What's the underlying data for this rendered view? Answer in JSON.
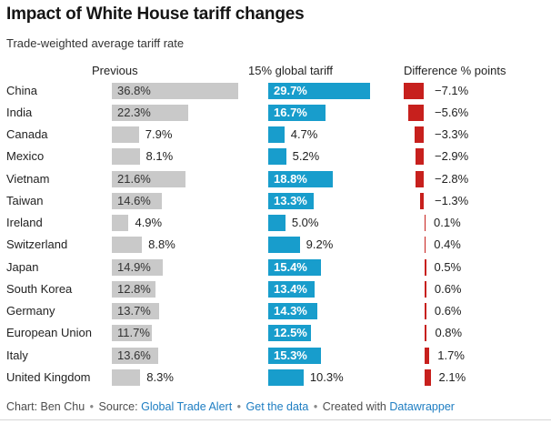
{
  "title": "Impact of White House tariff changes",
  "subtitle": "Trade-weighted average tariff rate",
  "columns": {
    "previous": "Previous",
    "new": "15% global tariff",
    "diff": "Difference % points"
  },
  "colors": {
    "previous_bar": "#c9c9c9",
    "new_bar": "#189dcc",
    "diff_bar": "#c7201d",
    "link": "#1d7dc2"
  },
  "footer": {
    "credit": "Chart: Ben Chu",
    "separator": "•",
    "source_label": "Source:",
    "source_link": "Global Trade Alert",
    "get_data_link": "Get the data",
    "created_with": "Created with",
    "datawrapper_link": "Datawrapper"
  },
  "chart_data": {
    "type": "bar",
    "title": "Impact of White House tariff changes",
    "subtitle": "Trade-weighted average tariff rate",
    "orientation": "horizontal",
    "grid": false,
    "value_labels": true,
    "categories": [
      "China",
      "India",
      "Canada",
      "Mexico",
      "Vietnam",
      "Taiwan",
      "Ireland",
      "Switzerland",
      "Japan",
      "South Korea",
      "Germany",
      "European Union",
      "Italy",
      "United Kingdom"
    ],
    "series": [
      {
        "name": "Previous",
        "color": "#c9c9c9",
        "values": [
          36.8,
          22.3,
          7.9,
          8.1,
          21.6,
          14.6,
          4.9,
          8.8,
          14.9,
          12.8,
          13.7,
          11.7,
          13.6,
          8.3
        ],
        "labels": [
          "36.8%",
          "22.3%",
          "7.9%",
          "8.1%",
          "21.6%",
          "14.6%",
          "4.9%",
          "8.8%",
          "14.9%",
          "12.8%",
          "13.7%",
          "11.7%",
          "13.6%",
          "8.3%"
        ]
      },
      {
        "name": "15% global tariff",
        "color": "#189dcc",
        "values": [
          29.7,
          16.7,
          4.7,
          5.2,
          18.8,
          13.3,
          5.0,
          9.2,
          15.4,
          13.4,
          14.3,
          12.5,
          15.3,
          10.3
        ],
        "labels": [
          "29.7%",
          "16.7%",
          "4.7%",
          "5.2%",
          "18.8%",
          "13.3%",
          "5.0%",
          "9.2%",
          "15.4%",
          "13.4%",
          "14.3%",
          "12.5%",
          "15.3%",
          "10.3%"
        ]
      },
      {
        "name": "Difference % points",
        "color": "#c7201d",
        "values": [
          -7.1,
          -5.6,
          -3.3,
          -2.9,
          -2.8,
          -1.3,
          0.1,
          0.4,
          0.5,
          0.6,
          0.6,
          0.8,
          1.7,
          2.1
        ],
        "labels": [
          "−7.1%",
          "−5.6%",
          "−3.3%",
          "−2.9%",
          "−2.8%",
          "−1.3%",
          "0.1%",
          "0.4%",
          "0.5%",
          "0.6%",
          "0.6%",
          "0.8%",
          "1.7%",
          "2.1%"
        ]
      }
    ]
  }
}
